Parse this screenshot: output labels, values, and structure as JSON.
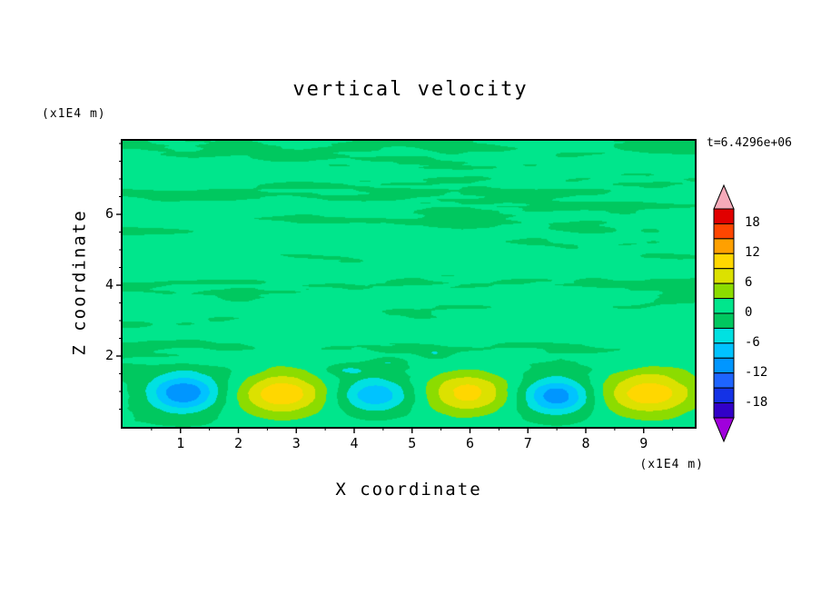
{
  "title": "vertical velocity",
  "annotations": {
    "y_unit": "(x1E4 m)",
    "x_unit": "(x1E4 m)",
    "time": "t=6.4296e+06"
  },
  "axes": {
    "xlabel": "X coordinate",
    "ylabel": "Z coordinate",
    "x_ticks": [
      1,
      2,
      3,
      4,
      5,
      6,
      7,
      8,
      9
    ],
    "y_ticks": [
      2,
      4,
      6
    ],
    "minor_step": 0.5,
    "x_range": [
      0,
      9.88
    ],
    "y_range": [
      0,
      8.08
    ]
  },
  "chart_data": {
    "type": "heatmap",
    "title": "vertical velocity",
    "xlabel": "X coordinate (x1E4 m)",
    "ylabel": "Z coordinate (x1E4 m)",
    "time_label": "t=6.4296e+06",
    "x_range": [
      0,
      9.88
    ],
    "z_range": [
      0,
      8.08
    ],
    "contour_interval": 3,
    "colorbar_labels": [
      18,
      12,
      6,
      0,
      -6,
      -12,
      -18
    ],
    "colorbar_range": [
      -21,
      21
    ],
    "colormap": [
      {
        "min": -21,
        "max": -18,
        "color": "#3200C8"
      },
      {
        "min": -18,
        "max": -15,
        "color": "#1432E6"
      },
      {
        "min": -15,
        "max": -12,
        "color": "#1E64FF"
      },
      {
        "min": -12,
        "max": -9,
        "color": "#0096FF"
      },
      {
        "min": -9,
        "max": -6,
        "color": "#00C3FF"
      },
      {
        "min": -6,
        "max": -3,
        "color": "#00E1E1"
      },
      {
        "min": -3,
        "max": 0,
        "color": "#00C85F"
      },
      {
        "min": 0,
        "max": 3,
        "color": "#00E68C"
      },
      {
        "min": 3,
        "max": 6,
        "color": "#8CDC00"
      },
      {
        "min": 6,
        "max": 9,
        "color": "#DCE100"
      },
      {
        "min": 9,
        "max": 12,
        "color": "#FFD700"
      },
      {
        "min": 12,
        "max": 15,
        "color": "#FFA000"
      },
      {
        "min": 15,
        "max": 18,
        "color": "#FF4600"
      },
      {
        "min": 18,
        "max": 21,
        "color": "#E10000"
      }
    ],
    "under_color": "#A000DC",
    "over_color": "#F5AAB9",
    "background_value_band": [
      0,
      3
    ],
    "convective_cells": [
      {
        "x": 1.05,
        "z": 0.95,
        "amp": -12.5,
        "rx": 0.6,
        "rz": 0.52
      },
      {
        "x": 2.75,
        "z": 0.95,
        "amp": 10.8,
        "rx": 0.72,
        "rz": 0.6
      },
      {
        "x": 4.35,
        "z": 0.9,
        "amp": -9.0,
        "rx": 0.58,
        "rz": 0.48
      },
      {
        "x": 5.95,
        "z": 0.95,
        "amp": 9.8,
        "rx": 0.7,
        "rz": 0.58
      },
      {
        "x": 7.5,
        "z": 0.88,
        "amp": -12.0,
        "rx": 0.58,
        "rz": 0.5
      },
      {
        "x": 9.1,
        "z": 0.95,
        "amp": 10.8,
        "rx": 0.8,
        "rz": 0.62
      },
      {
        "x": 4.6,
        "z": 1.8,
        "amp": -3.8,
        "rx": 0.3,
        "rz": 0.16
      },
      {
        "x": 5.4,
        "z": 2.05,
        "amp": -3.5,
        "rx": 0.25,
        "rz": 0.14
      },
      {
        "x": 3.9,
        "z": 1.6,
        "amp": -3.2,
        "rx": 0.35,
        "rz": 0.15
      }
    ],
    "turbulence_noise": {
      "amplitude": 2.4,
      "bias": 0.6,
      "octaves": [
        [
          0.5,
          2.8,
          0.55
        ],
        [
          1.0,
          5.6,
          0.3
        ],
        [
          2.0,
          11.2,
          0.15
        ]
      ],
      "damp_z": [
        0.6,
        2.4,
        0.25
      ]
    }
  }
}
